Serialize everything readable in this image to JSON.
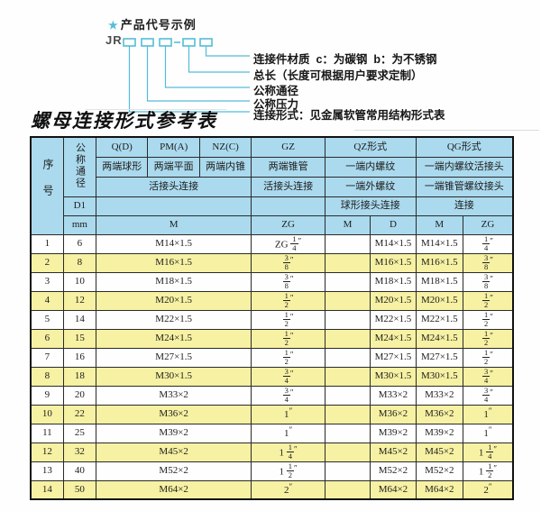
{
  "colors": {
    "cyan": "#54bcd9",
    "blue": "#abdaee",
    "yellow": "#f6f1a3"
  },
  "diagram": {
    "star_icon": "★",
    "heading": "产品代号示例",
    "code_prefix": "JR",
    "labels": [
      "连接件材质  c：为碳钢  b：为不锈钢",
      "总长（长度可根据用户要求定制）",
      "公称通径",
      "公称压力",
      "连接形式：见金属软管常用结构形式表"
    ]
  },
  "title": "螺母连接形式参考表",
  "table": {
    "header": {
      "no": "序号",
      "dn": "公称通径",
      "d1": "D1",
      "mm": "mm",
      "col_q": "Q(D)",
      "sub_q": "两端球形",
      "col_pm": "PM(A)",
      "sub_pm": "两端平面",
      "col_nz": "NZ(C)",
      "sub_nz": "两端内锥",
      "col_gz": "GZ",
      "sub_gz": "两端锥管",
      "gz_r3": "活接头连接",
      "left_r3": "活接头连接",
      "col_qz": "QZ形式",
      "qz_r2": "一端内螺纹",
      "qz_r3": "一端外螺纹",
      "qz_r4": "球形接头连接",
      "col_qg": "QG形式",
      "qg_r2": "一端内螺纹活接头",
      "qg_r3": "一端锥管螺纹接头",
      "qg_r4": "连接",
      "unit_m_left": "M",
      "unit_zg_gz": "ZG",
      "unit_m_qz": "M",
      "unit_d_qz": "D",
      "unit_m_qg": "M",
      "unit_zg_qg": "ZG"
    },
    "rows": [
      [
        "1",
        "6",
        "M14×1.5",
        "ZG 1/4\"",
        "",
        "M14×1.5",
        "M14×1.5",
        "1/4\""
      ],
      [
        "2",
        "8",
        "M16×1.5",
        "3/8\"",
        "",
        "M16×1.5",
        "M16×1.5",
        "3/8\""
      ],
      [
        "3",
        "10",
        "M18×1.5",
        "3/8\"",
        "",
        "M18×1.5",
        "M18×1.5",
        "3/8\""
      ],
      [
        "4",
        "12",
        "M20×1.5",
        "1/2\"",
        "",
        "M20×1.5",
        "M20×1.5",
        "1/2\""
      ],
      [
        "5",
        "14",
        "M22×1.5",
        "1/2\"",
        "",
        "M22×1.5",
        "M22×1.5",
        "1/2\""
      ],
      [
        "6",
        "15",
        "M24×1.5",
        "1/2\"",
        "",
        "M24×1.5",
        "M24×1.5",
        "1/2\""
      ],
      [
        "7",
        "16",
        "M27×1.5",
        "1/2\"",
        "",
        "M27×1.5",
        "M27×1.5",
        "1/2\""
      ],
      [
        "8",
        "18",
        "M30×1.5",
        "3/4\"",
        "",
        "M30×1.5",
        "M30×1.5",
        "3/4\""
      ],
      [
        "9",
        "20",
        "M33×2",
        "3/4\"",
        "",
        "M33×2",
        "M33×2",
        "3/4\""
      ],
      [
        "10",
        "22",
        "M36×2",
        "1\"",
        "",
        "M36×2",
        "M36×2",
        "1\""
      ],
      [
        "11",
        "25",
        "M39×2",
        "1\"",
        "",
        "M39×2",
        "M39×2",
        "1\""
      ],
      [
        "12",
        "32",
        "M45×2",
        "1 1/4\"",
        "",
        "M45×2",
        "M45×2",
        "1 1/4\""
      ],
      [
        "13",
        "40",
        "M52×2",
        "1 1/2\"",
        "",
        "M52×2",
        "M52×2",
        "1 1/2\""
      ],
      [
        "14",
        "50",
        "M64×2",
        "2\"",
        "",
        "M64×2",
        "M64×2",
        "2\""
      ]
    ]
  }
}
